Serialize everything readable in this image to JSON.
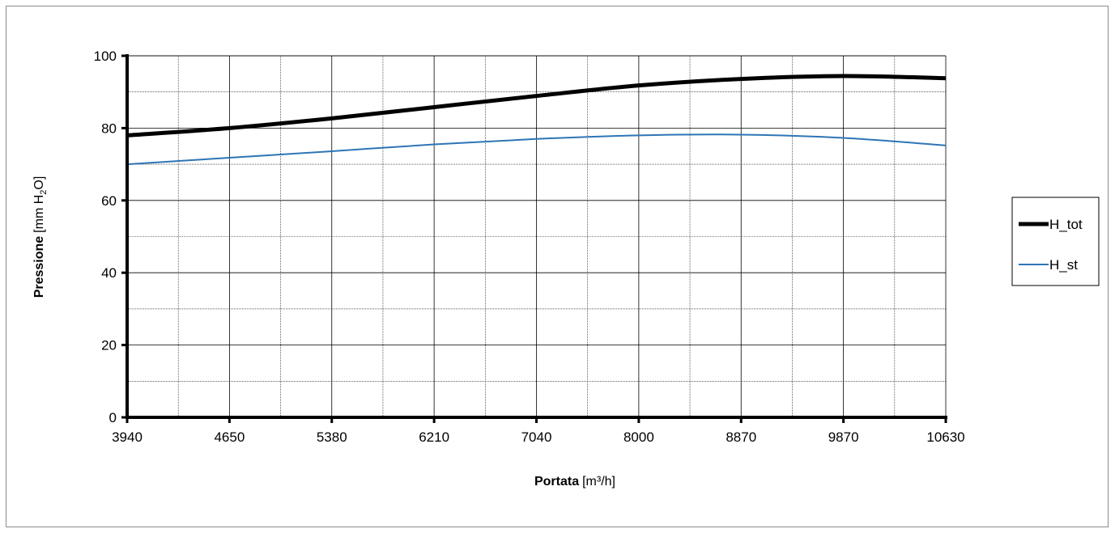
{
  "chart_data": {
    "type": "line",
    "x_ticks": [
      "3940",
      "4650",
      "5380",
      "6210",
      "7040",
      "8000",
      "8870",
      "9870",
      "10630"
    ],
    "x_tick_values": [
      3940,
      4650,
      5380,
      6210,
      7040,
      8000,
      8870,
      9870,
      10630
    ],
    "xlim": [
      3940,
      10630
    ],
    "ylim": [
      0,
      100
    ],
    "y_ticks": [
      "0",
      "20",
      "40",
      "60",
      "80",
      "100"
    ],
    "y_tick_values": [
      0,
      20,
      40,
      60,
      80,
      100
    ],
    "xlabel_bold": "Portata",
    "xlabel_unit": "[m³/h]",
    "ylabel_bold": "Pressione",
    "ylabel_unit_pre": "[mm H",
    "ylabel_unit_sub": "2",
    "ylabel_unit_post": "O]",
    "grid": true,
    "legend_position": "right",
    "series": [
      {
        "name": "H_tot",
        "color": "#000000",
        "x": [
          3940,
          4650,
          5380,
          6210,
          7040,
          8000,
          8870,
          9870,
          10630
        ],
        "y": [
          78,
          80,
          82.7,
          85.8,
          88.9,
          91.8,
          93.6,
          94.4,
          93.8
        ]
      },
      {
        "name": "H_st",
        "color": "#2e75b6",
        "x": [
          3940,
          4650,
          5380,
          6210,
          7040,
          8000,
          8870,
          9870,
          10630
        ],
        "y": [
          70,
          71.8,
          73.6,
          75.5,
          77,
          78,
          78.2,
          77.3,
          75.2
        ]
      }
    ]
  }
}
